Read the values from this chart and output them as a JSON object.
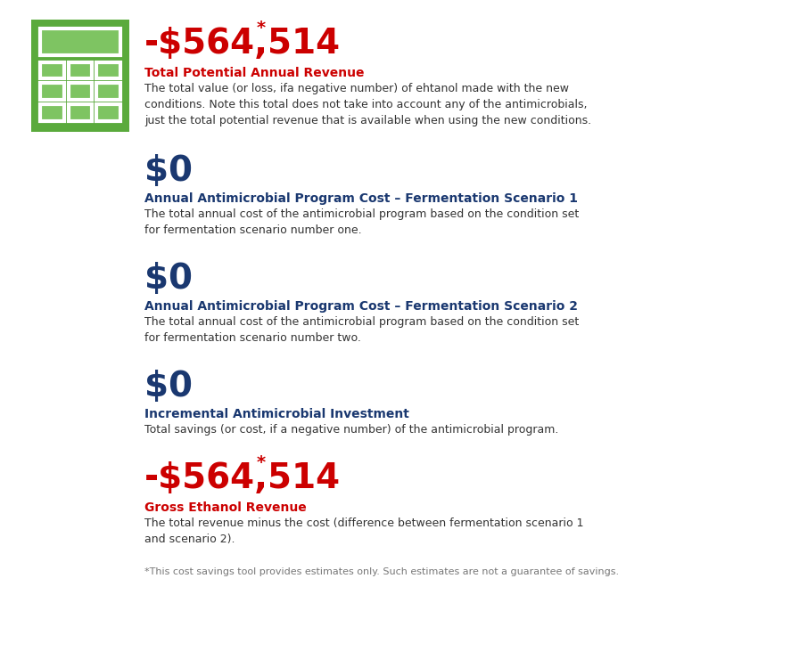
{
  "bg_color": "#ffffff",
  "red_color": "#cc0000",
  "blue_color": "#1a3870",
  "gray_color": "#333333",
  "light_gray": "#777777",
  "green_bg": "#5aaa3c",
  "green_screen": "#7ec462",
  "big_value_1": "-$564,514",
  "big_value_1_star": "*",
  "label_1": "Total Potential Annual Revenue",
  "desc_1": "The total value (or loss, ifa negative number) of ehtanol made with the new\nconditions. Note this total does not take into account any of the antimicrobials,\njust the total potential revenue that is available when using the new conditions.",
  "big_value_2": "$0",
  "label_2": "Annual Antimicrobial Program Cost – Fermentation Scenario 1",
  "desc_2": "The total annual cost of the antimicrobial program based on the condition set\nfor fermentation scenario number one.",
  "big_value_3": "$0",
  "label_3": "Annual Antimicrobial Program Cost – Fermentation Scenario 2",
  "desc_3": "The total annual cost of the antimicrobial program based on the condition set\nfor fermentation scenario number two.",
  "big_value_4": "$0",
  "label_4": "Incremental Antimicrobial Investment",
  "desc_4": "Total savings (or cost, if a negative number) of the antimicrobial program.",
  "big_value_5": "-$564,514",
  "big_value_5_star": "*",
  "label_5": "Gross Ethanol Revenue",
  "desc_5": "The total revenue minus the cost (difference between fermentation scenario 1\nand scenario 2).",
  "footnote": "*This cost savings tool provides estimates only. Such estimates are not a guarantee of savings.",
  "big_fontsize": 28,
  "label_fontsize": 10,
  "desc_fontsize": 9,
  "footnote_fontsize": 8
}
